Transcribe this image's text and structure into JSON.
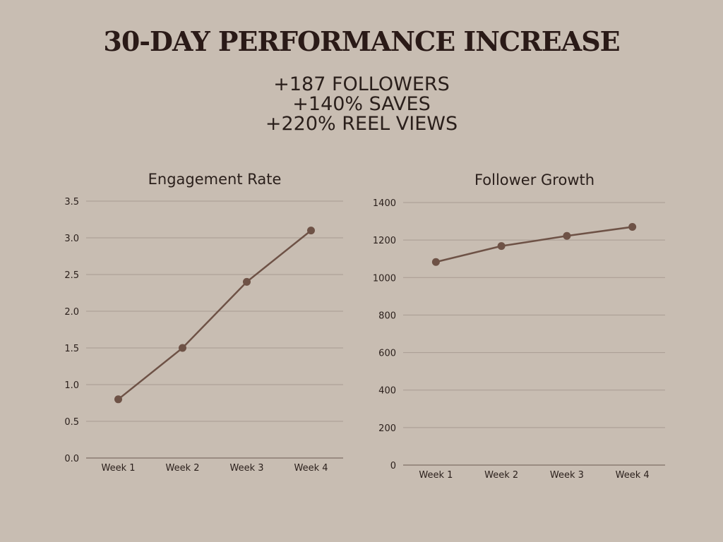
{
  "title": "30-DAY PERFORMANCE INCREASE",
  "stats": [
    "+187 FOLLOWERS",
    "+140% SAVES",
    "+220% REEL VIEWS"
  ],
  "colors": {
    "background": "#c8bdb2",
    "line": "#6e5246",
    "grid": "#a99c92",
    "text": "#2a1f1b"
  },
  "chart_data": [
    {
      "type": "line",
      "title": "Engagement Rate",
      "categories": [
        "Week 1",
        "Week 2",
        "Week 3",
        "Week 4"
      ],
      "series": [
        {
          "values": [
            0.8,
            1.5,
            2.4,
            3.1
          ]
        }
      ],
      "ylim": [
        0,
        3.5
      ],
      "yticks": [
        "0.0",
        "0.5",
        "1.0",
        "1.5",
        "2.0",
        "2.5",
        "3.0",
        "3.5"
      ],
      "grid": true,
      "legend": "none"
    },
    {
      "type": "line",
      "title": "Follower Growth",
      "categories": [
        "Week 1",
        "Week 2",
        "Week 3",
        "Week 4"
      ],
      "series": [
        {
          "values": [
            1083,
            1168,
            1222,
            1270
          ]
        }
      ],
      "ylim": [
        0,
        1400
      ],
      "yticks": [
        "0",
        "200",
        "400",
        "600",
        "800",
        "1000",
        "1200",
        "1400"
      ],
      "grid": true,
      "legend": "none"
    }
  ]
}
